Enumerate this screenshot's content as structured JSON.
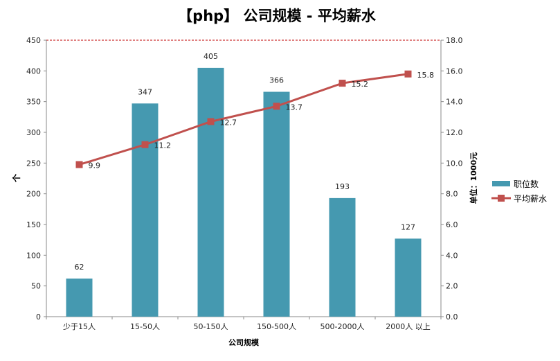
{
  "chart_data": {
    "type": "bar+line",
    "title": "【php】 公司规模 - 平均薪水",
    "xlabel": "公司规模",
    "ylabel": "个",
    "y2label": "单位：1000元",
    "categories": [
      "少于15人",
      "15-50人",
      "50-150人",
      "150-500人",
      "500-2000人",
      "2000人 以上"
    ],
    "ylim": [
      0,
      450
    ],
    "yticks": [
      "0",
      "50",
      "100",
      "150",
      "200",
      "250",
      "300",
      "350",
      "400",
      "450"
    ],
    "y2lim": [
      0,
      18
    ],
    "y2ticks": [
      "0.0",
      "2.0",
      "4.0",
      "6.0",
      "8.0",
      "10.0",
      "12.0",
      "14.0",
      "16.0",
      "18.0"
    ],
    "series": [
      {
        "name": "职位数",
        "type": "bar",
        "axis": "left",
        "color": "#4599b0",
        "values": [
          62,
          347,
          405,
          366,
          193,
          127
        ],
        "labels": [
          "62",
          "347",
          "405",
          "366",
          "193",
          "127"
        ]
      },
      {
        "name": "平均薪水",
        "type": "line",
        "axis": "right",
        "color": "#c0504d",
        "values": [
          9.9,
          11.2,
          12.7,
          13.7,
          15.2,
          15.8
        ],
        "labels": [
          "9.9",
          "11.2",
          "12.7",
          "13.7",
          "15.2",
          "15.8"
        ]
      }
    ],
    "grid": false,
    "legend": "right"
  }
}
